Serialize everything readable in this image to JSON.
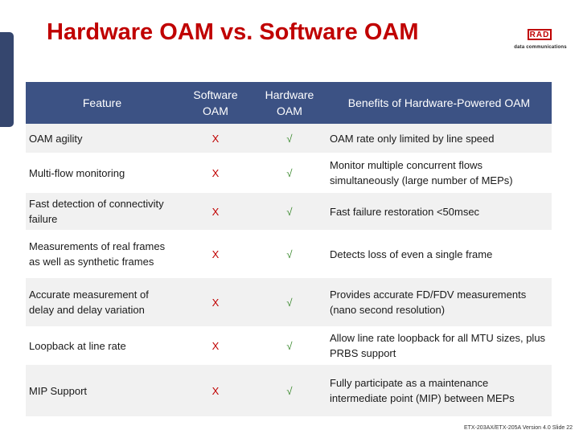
{
  "slide": {
    "title": "Hardware OAM vs. Software OAM",
    "footer": "ETX-203AX/ETX-205A Version 4.0 Slide 22"
  },
  "logo": {
    "mark": "RAD",
    "subtitle": "data communications"
  },
  "table": {
    "headers": [
      "Feature",
      "Software OAM",
      "Hardware OAM",
      "Benefits of Hardware-Powered OAM"
    ],
    "rows": [
      {
        "feature": "OAM agility",
        "software": "X",
        "hardware": "√",
        "benefit": "OAM rate only limited by line speed"
      },
      {
        "feature": "Multi-flow monitoring",
        "software": "X",
        "hardware": "√",
        "benefit": "Monitor multiple concurrent flows simultaneously (large number of MEPs)"
      },
      {
        "feature": "Fast detection of connectivity failure",
        "software": "X",
        "hardware": "√",
        "benefit": "Fast failure restoration <50msec"
      },
      {
        "feature": "Measurements of real frames as well as synthetic frames",
        "software": "X",
        "hardware": "√",
        "benefit": "Detects loss of even a single frame"
      },
      {
        "feature": "Accurate measurement of delay and delay variation",
        "software": "X",
        "hardware": "√",
        "benefit": "Provides accurate FD/FDV measurements (nano second resolution)"
      },
      {
        "feature": "Loopback at line rate",
        "software": "X",
        "hardware": "√",
        "benefit": "Allow line rate loopback for all MTU sizes, plus PRBS support"
      },
      {
        "feature": "MIP Support",
        "software": "X",
        "hardware": "√",
        "benefit": "Fully participate as a maintenance intermediate point (MIP) between MEPs"
      }
    ]
  },
  "colors": {
    "title": "#c00000",
    "header_bg": "#3c5284",
    "x_mark": "#c00000",
    "check_mark": "#3b8a2e"
  }
}
